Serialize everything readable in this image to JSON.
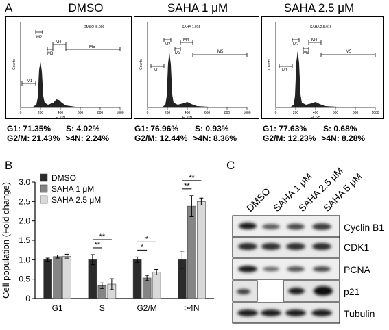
{
  "panel_a": {
    "letter": "A",
    "histograms": [
      {
        "title": "DMSO",
        "file": "DMSO III.009",
        "stats": {
          "g1": "G1: 71.35%",
          "s": "S: 4.02%",
          "g2m": "G2/M: 21.43%",
          "gt4n": ">4N: 2.24%"
        }
      },
      {
        "title": "SAHA 1 μM",
        "file": "SAHA 1.015",
        "stats": {
          "g1": "G1: 76.96%",
          "s": "S: 0.93%",
          "g2m": "G2/M: 12.44%",
          "gt4n": ">4N: 8.36%"
        }
      },
      {
        "title": "SAHA 2.5 μM",
        "file": "SAHA 2.5.016",
        "stats": {
          "g1": "G1: 77.63%",
          "s": "S: 0.68%",
          "g2m": "G2/M: 12.23%",
          "gt4n": ">4N: 8.28%"
        }
      }
    ],
    "axis": {
      "xlabel": "FL2-H",
      "ylabel": "Counts",
      "xticks": [
        "0",
        "200",
        "400",
        "600",
        "800",
        "1000"
      ]
    },
    "markers": [
      "M1",
      "M2",
      "M3",
      "M4",
      "M5"
    ]
  },
  "panel_b": {
    "letter": "B"
  },
  "panel_c": {
    "letter": "C",
    "lanes": [
      "DMSO",
      "SAHA 1 μM",
      "SAHA 2.5 μM",
      "SAHA 5 μM"
    ],
    "bands": [
      "Cyclin B1",
      "CDK1",
      "PCNA",
      "p21",
      "Tubulin"
    ]
  },
  "chart_data": {
    "type": "bar",
    "categories": [
      "G1",
      "S",
      "G2/M",
      ">4N"
    ],
    "ylabel": "Cell population (Fold change)",
    "ylim": [
      0,
      3.0
    ],
    "yticks": [
      "0",
      "0.5",
      "1.0",
      "1.5",
      "2.0",
      "2.5",
      "3.0"
    ],
    "legend_position": "top-left",
    "series": [
      {
        "name": "DMSO",
        "color": "#2b2b2b",
        "values": [
          1.0,
          1.0,
          1.0,
          1.0
        ],
        "errors": [
          0.04,
          0.13,
          0.07,
          0.22
        ]
      },
      {
        "name": "SAHA 1 μM",
        "color": "#858585",
        "values": [
          1.08,
          0.33,
          0.53,
          2.38
        ],
        "errors": [
          0.04,
          0.07,
          0.07,
          0.27
        ]
      },
      {
        "name": "SAHA 2.5 μM",
        "color": "#d9d9d9",
        "values": [
          1.09,
          0.37,
          0.68,
          2.5
        ],
        "errors": [
          0.05,
          0.14,
          0.07,
          0.09
        ]
      }
    ],
    "significance": [
      "**",
      "**",
      "*",
      "*",
      "**",
      "**"
    ]
  }
}
